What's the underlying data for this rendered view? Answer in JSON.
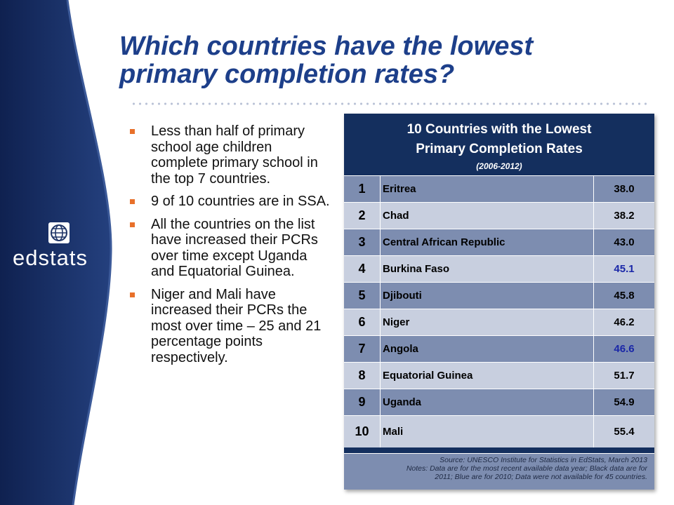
{
  "brand": {
    "logo_text": "edstats",
    "band_color": "#1e3466",
    "accent_color": "#e8702a"
  },
  "slide": {
    "title_line1": "Which countries have the lowest",
    "title_line2": "primary completion rates?"
  },
  "bullets": [
    "Less than half of primary school age children complete primary school in the top 7 countries.",
    "9 of 10 countries are in SSA.",
    "All the countries on the list have increased their PCRs over time except Uganda and Equatorial Guinea.",
    "Niger and Mali have increased their PCRs the most over time – 25 and 21 percentage points respectively."
  ],
  "table": {
    "title_line1": "10 Countries with the Lowest",
    "title_line2": "Primary Completion Rates",
    "years": "(2006-2012)",
    "rows": [
      {
        "rank": "1",
        "country": "Eritrea",
        "value": "38.0",
        "color": "black"
      },
      {
        "rank": "2",
        "country": "Chad",
        "value": "38.2",
        "color": "black"
      },
      {
        "rank": "3",
        "country": "Central African Republic",
        "value": "43.0",
        "color": "black"
      },
      {
        "rank": "4",
        "country": "Burkina Faso",
        "value": "45.1",
        "color": "blue"
      },
      {
        "rank": "5",
        "country": "Djibouti",
        "value": "45.8",
        "color": "black"
      },
      {
        "rank": "6",
        "country": "Niger",
        "value": "46.2",
        "color": "black"
      },
      {
        "rank": "7",
        "country": "Angola",
        "value": "46.6",
        "color": "blue"
      },
      {
        "rank": "8",
        "country": "Equatorial Guinea",
        "value": "51.7",
        "color": "black"
      },
      {
        "rank": "9",
        "country": "Uganda",
        "value": "54.9",
        "color": "black"
      },
      {
        "rank": "10",
        "country": "Mali",
        "value": "55.4",
        "color": "black"
      }
    ],
    "source_line1": "Source: UNESCO Institute for Statistics in EdStats, March 2013",
    "source_line2": "Notes: Data are for the most recent available data year; Black data are for",
    "source_line3": "2011; Blue are for 2010; Data were not available for 45 countries."
  }
}
